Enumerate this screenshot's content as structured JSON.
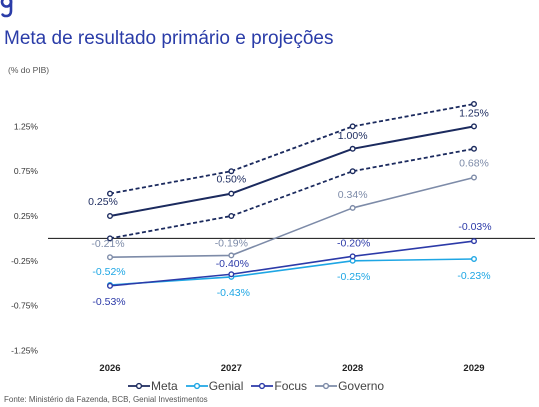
{
  "brand_color": "#2a3ca8",
  "chart_data": {
    "type": "line",
    "title": "Meta de resultado primário e projeções",
    "subtitle": "(% do PIB)",
    "categories": [
      "2026",
      "2027",
      "2028",
      "2029"
    ],
    "ylim": [
      -1.25,
      1.5
    ],
    "y_ticks": [
      1.25,
      0.75,
      0.25,
      -0.25,
      -0.75,
      -1.25
    ],
    "y_tick_labels": [
      "1.25%",
      "0.75%",
      "0.25%",
      "-0.25%",
      "-0.75%",
      "-1.25%"
    ],
    "grid": false,
    "zero_line": true,
    "legend_position": "bottom",
    "series": [
      {
        "name": "Meta",
        "color": "#1b2a5e",
        "line_style": "solid",
        "values": [
          0.25,
          0.5,
          1.0,
          1.25
        ],
        "data_labels": [
          "0.25%",
          "0.50%",
          "1.00%",
          "1.25%"
        ]
      },
      {
        "name": "Genial",
        "color": "#1ea6e4",
        "line_style": "solid",
        "values": [
          -0.52,
          -0.43,
          -0.25,
          -0.23
        ],
        "data_labels": [
          "-0.52%",
          "-0.43%",
          "-0.25%",
          "-0.23%"
        ]
      },
      {
        "name": "Focus",
        "color": "#2c3aa8",
        "line_style": "solid",
        "values": [
          -0.53,
          -0.4,
          -0.2,
          -0.03
        ],
        "data_labels": [
          "-0.53%",
          "-0.40%",
          "-0.20%",
          "-0.03%"
        ]
      },
      {
        "name": "Governo",
        "color": "#7d8ba8",
        "line_style": "solid",
        "values": [
          -0.21,
          -0.19,
          0.34,
          0.68
        ],
        "data_labels": [
          "-0.21%",
          "-0.19%",
          "0.34%",
          "0.68%"
        ]
      }
    ],
    "bands": [
      {
        "color": "#1b2a5e",
        "line_style": "dashed",
        "values": [
          0.5,
          0.75,
          1.25,
          1.5
        ]
      },
      {
        "color": "#1b2a5e",
        "line_style": "dashed",
        "values": [
          0.0,
          0.25,
          0.75,
          1.0
        ]
      }
    ]
  },
  "footer": {
    "source": "Fonte: Ministério da Fazenda, BCB, Genial Investimentos"
  }
}
